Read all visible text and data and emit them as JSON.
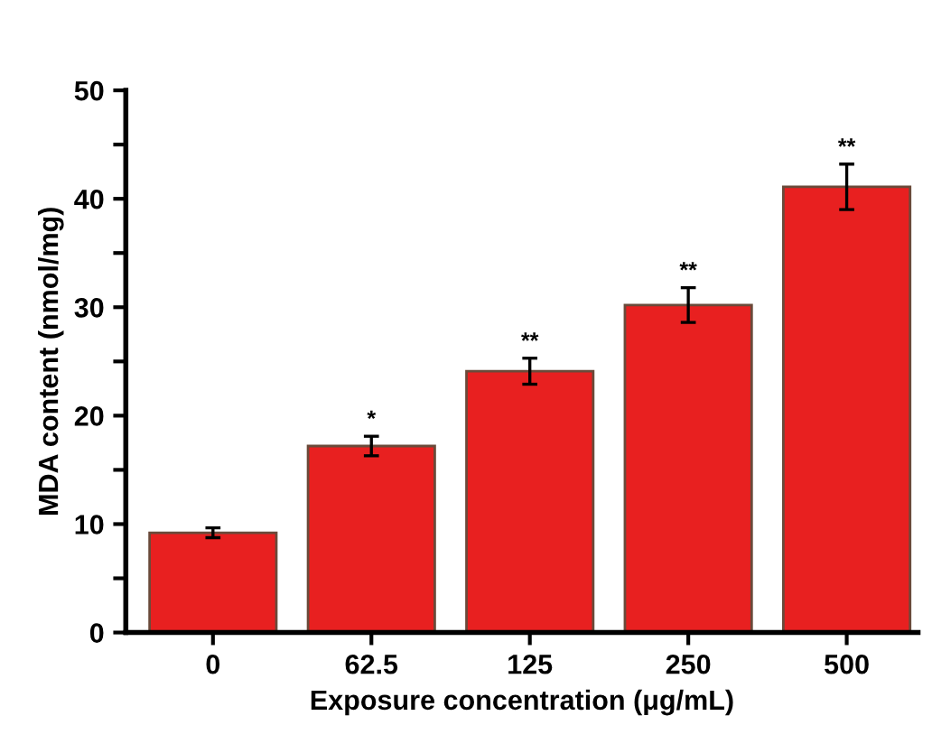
{
  "chart_data": {
    "type": "bar",
    "xlabel": "Exposure concentration (μg/mL)",
    "ylabel": "MDA content (nmol/mg)",
    "categories": [
      "0",
      "62.5",
      "125",
      "250",
      "500"
    ],
    "series": [
      {
        "color": "#e82020",
        "values": [
          9.2,
          17.2,
          24.1,
          30.2,
          41.1
        ],
        "errors": [
          0.45,
          0.9,
          1.2,
          1.6,
          2.1
        ]
      }
    ],
    "ylim": [
      0,
      50
    ],
    "yticks": [
      0,
      {
        "value": 5,
        "label": null
      },
      10,
      {
        "value": 15,
        "label": null
      },
      20,
      {
        "value": 25,
        "label": null
      },
      30,
      {
        "value": 35,
        "label": null
      },
      40,
      {
        "value": 45,
        "label": null
      },
      50
    ],
    "annotations": [
      {
        "text": "*",
        "x": "62.5",
        "y": 18.6
      },
      {
        "text": "**",
        "x": "125",
        "y": 25.8
      },
      {
        "text": "**",
        "x": "250",
        "y": 32.3
      },
      {
        "text": "**",
        "x": "500",
        "y": 43.7
      }
    ],
    "grid": false,
    "legend": false
  }
}
